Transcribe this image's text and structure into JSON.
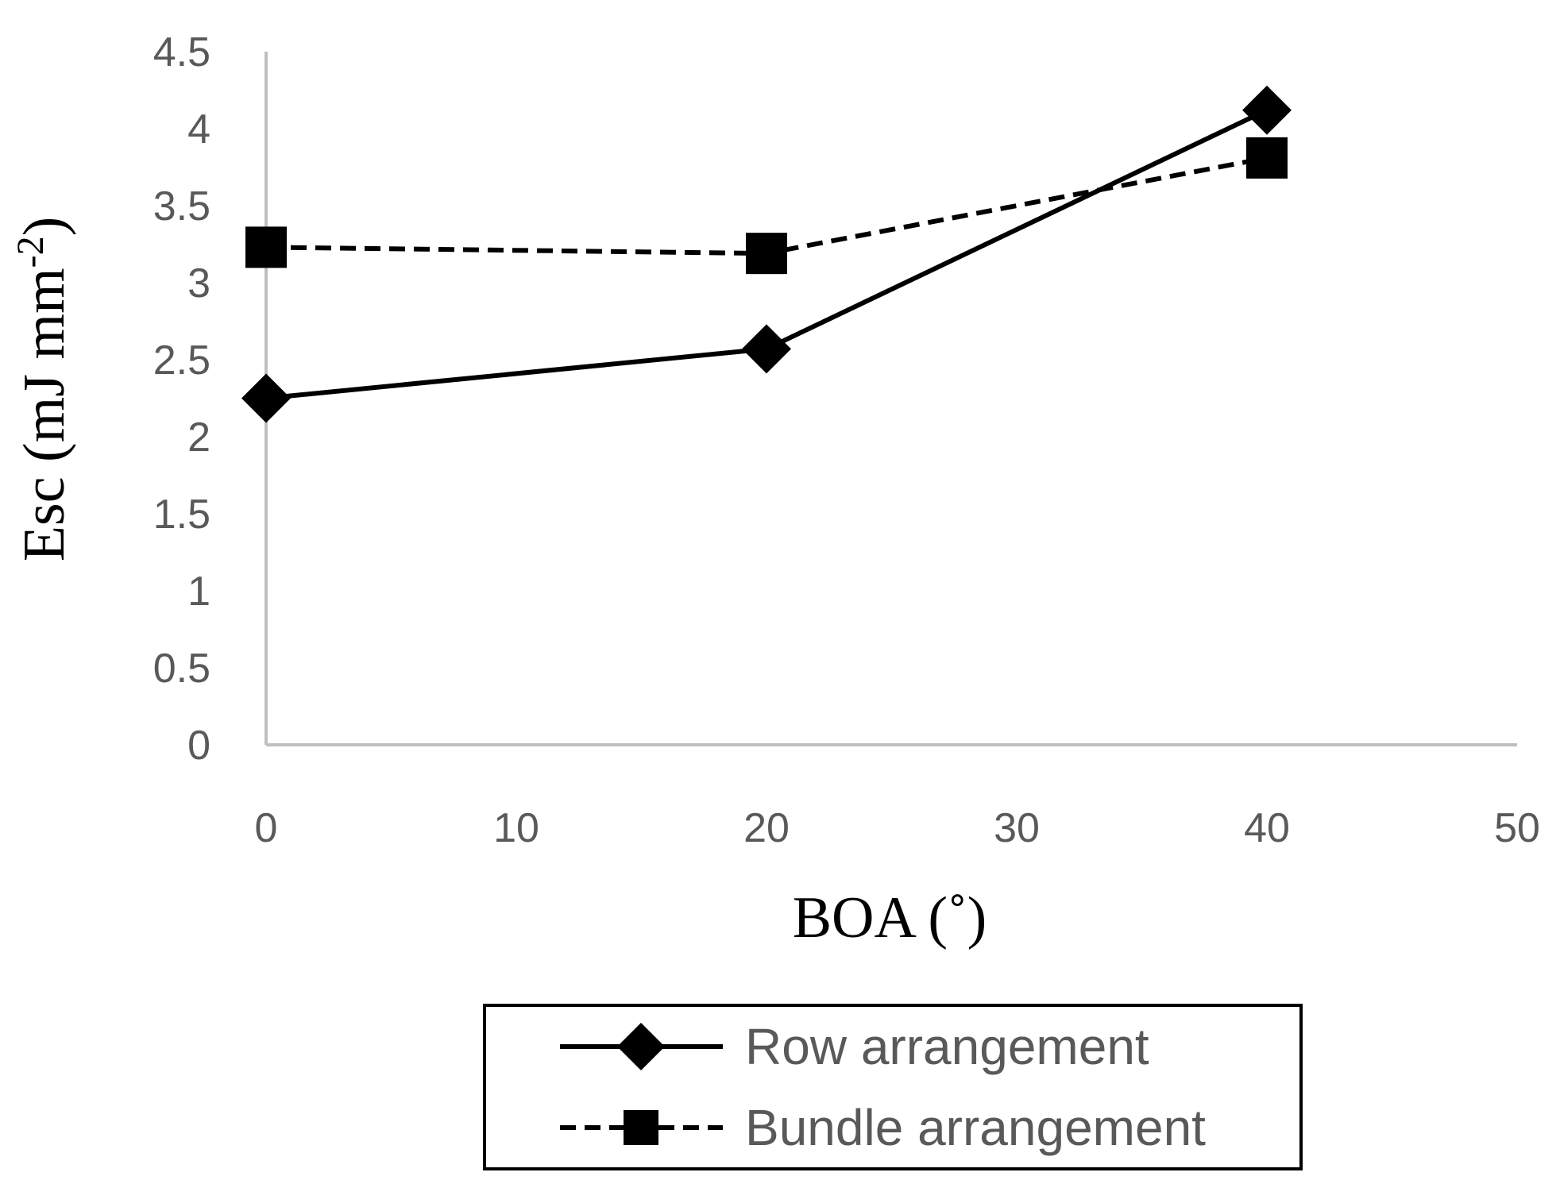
{
  "chart_data": {
    "type": "line",
    "title": "",
    "xlabel": "BOA (˚)",
    "ylabel_main": "Esc (mJ mm",
    "ylabel_sup": "-2",
    "ylabel_close": ")",
    "xlim": [
      0,
      50
    ],
    "ylim": [
      0,
      4.5
    ],
    "xticks": [
      0,
      10,
      20,
      30,
      40,
      50
    ],
    "yticks": [
      0,
      0.5,
      1,
      1.5,
      2,
      2.5,
      3,
      3.5,
      4,
      4.5
    ],
    "xtick_labels": [
      "0",
      "10",
      "20",
      "30",
      "40",
      "50"
    ],
    "ytick_labels": [
      "0",
      "0.5",
      "1",
      "1.5",
      "2",
      "2.5",
      "3",
      "3.5",
      "4",
      "4.5"
    ],
    "grid": false,
    "legend_position": "bottom",
    "series": [
      {
        "name": "Row arrangement",
        "marker": "diamond",
        "line": "solid",
        "color": "#000000",
        "x": [
          0,
          20,
          40
        ],
        "y": [
          2.25,
          2.57,
          4.12
        ]
      },
      {
        "name": "Bundle arrangement",
        "marker": "square",
        "line": "dashed",
        "color": "#000000",
        "x": [
          0,
          20,
          40
        ],
        "y": [
          3.23,
          3.19,
          3.81
        ]
      }
    ]
  },
  "colors": {
    "axis": "#bfbfbf",
    "tick_text": "#595959",
    "series": "#000000"
  }
}
